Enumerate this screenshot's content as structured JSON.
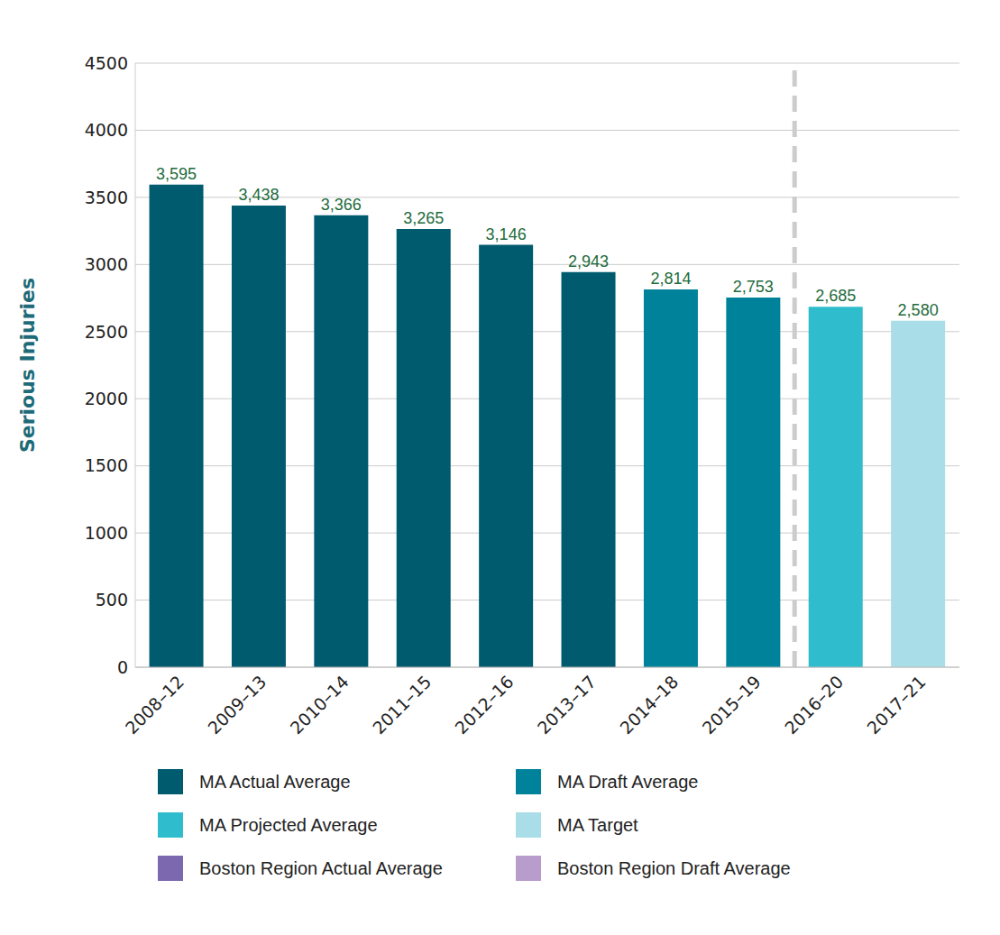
{
  "chart_data": {
    "type": "bar",
    "categories": [
      "2008–12",
      "2009–13",
      "2010–14",
      "2011–15",
      "2012–16",
      "2013–17",
      "2014–18",
      "2015–19",
      "2016–20",
      "2017–21"
    ],
    "series": [
      {
        "name": "MA Actual Average",
        "color": "#005b6f",
        "values": [
          3595,
          3438,
          3366,
          3265,
          3146,
          2943,
          null,
          null,
          null,
          null
        ],
        "value_labels": [
          "3,595",
          "3,438",
          "3,366",
          "3,265",
          "3,146",
          "2,943",
          null,
          null,
          null,
          null
        ]
      },
      {
        "name": "MA Draft Average",
        "color": "#00839a",
        "values": [
          null,
          null,
          null,
          null,
          null,
          null,
          2814,
          2753,
          null,
          null
        ],
        "value_labels": [
          null,
          null,
          null,
          null,
          null,
          null,
          "2,814",
          "2,753",
          null,
          null
        ]
      },
      {
        "name": "MA Projected Average",
        "color": "#2fbccc",
        "values": [
          null,
          null,
          null,
          null,
          null,
          null,
          null,
          null,
          2685,
          null
        ],
        "value_labels": [
          null,
          null,
          null,
          null,
          null,
          null,
          null,
          null,
          "2,685",
          null
        ]
      },
      {
        "name": "MA Target",
        "color": "#a9dde7",
        "values": [
          null,
          null,
          null,
          null,
          null,
          null,
          null,
          null,
          null,
          2580
        ],
        "value_labels": [
          null,
          null,
          null,
          null,
          null,
          null,
          null,
          null,
          null,
          "2,580"
        ]
      },
      {
        "name": "Boston Region Actual Average",
        "color": "#7b68ae",
        "values": [
          null,
          null,
          null,
          null,
          null,
          null,
          null,
          null,
          null,
          null
        ],
        "value_labels": [
          null,
          null,
          null,
          null,
          null,
          null,
          null,
          null,
          null,
          null
        ]
      },
      {
        "name": "Boston Region Draft Average",
        "color": "#b79ccc",
        "values": [
          null,
          null,
          null,
          null,
          null,
          null,
          null,
          null,
          null,
          null
        ],
        "value_labels": [
          null,
          null,
          null,
          null,
          null,
          null,
          null,
          null,
          null,
          null
        ]
      }
    ],
    "y_label": "Serious Injuries",
    "ylim": [
      0,
      4500
    ],
    "yticks": [
      0,
      500,
      1000,
      1500,
      2000,
      2500,
      3000,
      3500,
      4000,
      4500
    ],
    "grid": true,
    "data_labels": true,
    "stacked": true,
    "legend": "bottom"
  }
}
